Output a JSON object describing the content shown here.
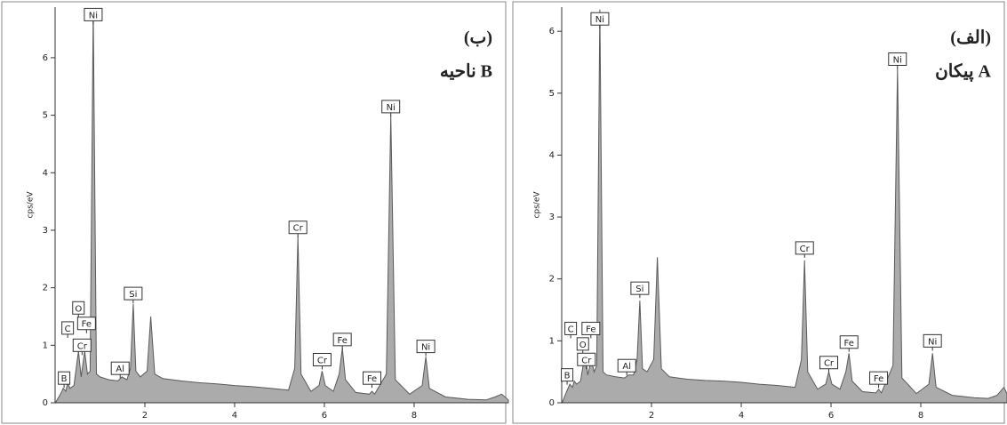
{
  "chart_data": [
    {
      "type": "area",
      "title": "(ب)",
      "subtitle": "ناحیه B",
      "y_label": "cps/eV",
      "color": "#ababab",
      "line_color": "#5a5a5a",
      "xlim": [
        0,
        10.1
      ],
      "ylim": [
        0,
        6.88
      ],
      "xticks": [
        2,
        4,
        6,
        8
      ],
      "yticks": [
        0,
        1,
        2,
        3,
        4,
        5,
        6
      ],
      "x": [
        0.02,
        0.12,
        0.18,
        0.24,
        0.28,
        0.33,
        0.42,
        0.52,
        0.58,
        0.66,
        0.72,
        0.78,
        0.85,
        0.92,
        1.0,
        1.2,
        1.4,
        1.49,
        1.6,
        1.68,
        1.74,
        1.8,
        1.9,
        2.05,
        2.13,
        2.22,
        2.4,
        2.8,
        3.2,
        3.6,
        4.0,
        4.4,
        4.8,
        5.2,
        5.34,
        5.41,
        5.48,
        5.7,
        5.88,
        5.95,
        6.02,
        6.2,
        6.33,
        6.4,
        6.47,
        6.7,
        7.0,
        7.06,
        7.12,
        7.38,
        7.48,
        7.58,
        7.9,
        8.18,
        8.26,
        8.34,
        8.7,
        9.2,
        9.6,
        9.8,
        9.95,
        10.1
      ],
      "values": [
        0.02,
        0.15,
        0.25,
        0.2,
        0.35,
        0.25,
        0.3,
        0.9,
        0.45,
        0.9,
        0.5,
        0.55,
        6.85,
        0.5,
        0.45,
        0.4,
        0.38,
        0.45,
        0.4,
        0.6,
        1.72,
        0.55,
        0.45,
        0.55,
        1.5,
        0.5,
        0.42,
        0.38,
        0.35,
        0.33,
        0.3,
        0.28,
        0.25,
        0.22,
        0.6,
        2.9,
        0.5,
        0.2,
        0.3,
        0.55,
        0.3,
        0.2,
        0.5,
        0.95,
        0.4,
        0.18,
        0.15,
        0.2,
        0.15,
        0.5,
        5.0,
        0.4,
        0.15,
        0.3,
        0.8,
        0.25,
        0.1,
        0.06,
        0.05,
        0.1,
        0.15,
        0.05
      ],
      "annotations": [
        {
          "text": "Ni",
          "x": 0.85,
          "y": 6.75
        },
        {
          "text": "Ni",
          "x": 7.48,
          "y": 5.15
        },
        {
          "text": "Cr",
          "x": 5.41,
          "y": 3.05
        },
        {
          "text": "Si",
          "x": 1.74,
          "y": 1.9
        },
        {
          "text": "O",
          "x": 0.52,
          "y": 1.65
        },
        {
          "text": "Fe",
          "x": 0.7,
          "y": 1.38
        },
        {
          "text": "C",
          "x": 0.28,
          "y": 1.3
        },
        {
          "text": "Cr",
          "x": 0.6,
          "y": 1.0
        },
        {
          "text": "Al",
          "x": 1.45,
          "y": 0.6
        },
        {
          "text": "Cr",
          "x": 5.95,
          "y": 0.75
        },
        {
          "text": "Fe",
          "x": 6.4,
          "y": 1.1
        },
        {
          "text": "Fe",
          "x": 7.06,
          "y": 0.43
        },
        {
          "text": "Ni",
          "x": 8.26,
          "y": 0.98
        },
        {
          "text": "B",
          "x": 0.2,
          "y": 0.43
        }
      ]
    },
    {
      "type": "area",
      "title": "(الف)",
      "subtitle": "پیکان A",
      "y_label": "cps/eV",
      "color": "#ababab",
      "line_color": "#5a5a5a",
      "xlim": [
        0,
        9.92
      ],
      "ylim": [
        0,
        6.39
      ],
      "xticks": [
        2,
        4,
        6,
        8
      ],
      "yticks": [
        0,
        1,
        2,
        3,
        4,
        5,
        6
      ],
      "x": [
        0.02,
        0.12,
        0.18,
        0.24,
        0.28,
        0.33,
        0.42,
        0.52,
        0.58,
        0.66,
        0.72,
        0.78,
        0.85,
        0.92,
        1.0,
        1.2,
        1.4,
        1.49,
        1.6,
        1.68,
        1.74,
        1.8,
        1.9,
        2.05,
        2.13,
        2.22,
        2.4,
        2.8,
        3.2,
        3.6,
        4.0,
        4.4,
        4.8,
        5.2,
        5.34,
        5.41,
        5.48,
        5.7,
        5.88,
        5.95,
        6.02,
        6.2,
        6.33,
        6.4,
        6.47,
        6.7,
        7.0,
        7.06,
        7.12,
        7.38,
        7.48,
        7.58,
        7.9,
        8.18,
        8.26,
        8.34,
        8.7,
        9.2,
        9.5,
        9.7,
        9.85,
        9.92
      ],
      "values": [
        0.02,
        0.2,
        0.3,
        0.25,
        0.35,
        0.3,
        0.35,
        0.8,
        0.45,
        0.7,
        0.5,
        0.6,
        6.35,
        0.5,
        0.45,
        0.42,
        0.4,
        0.45,
        0.45,
        0.7,
        1.65,
        0.55,
        0.5,
        0.7,
        2.35,
        0.55,
        0.42,
        0.38,
        0.36,
        0.35,
        0.33,
        0.3,
        0.28,
        0.25,
        0.7,
        2.3,
        0.5,
        0.22,
        0.3,
        0.5,
        0.3,
        0.22,
        0.5,
        0.8,
        0.35,
        0.18,
        0.16,
        0.22,
        0.16,
        0.6,
        5.4,
        0.4,
        0.15,
        0.3,
        0.8,
        0.25,
        0.12,
        0.08,
        0.07,
        0.12,
        0.25,
        0.15
      ],
      "annotations": [
        {
          "text": "Ni",
          "x": 0.85,
          "y": 6.2
        },
        {
          "text": "Ni",
          "x": 7.48,
          "y": 5.55
        },
        {
          "text": "Cr",
          "x": 5.41,
          "y": 2.5
        },
        {
          "text": "Si",
          "x": 1.74,
          "y": 1.85
        },
        {
          "text": "C",
          "x": 0.2,
          "y": 1.2
        },
        {
          "text": "O",
          "x": 0.47,
          "y": 0.95
        },
        {
          "text": "Fe",
          "x": 0.65,
          "y": 1.2
        },
        {
          "text": "Cr",
          "x": 0.55,
          "y": 0.7
        },
        {
          "text": "Al",
          "x": 1.45,
          "y": 0.6
        },
        {
          "text": "Cr",
          "x": 5.95,
          "y": 0.65
        },
        {
          "text": "Fe",
          "x": 6.4,
          "y": 0.98
        },
        {
          "text": "Fe",
          "x": 7.06,
          "y": 0.4
        },
        {
          "text": "Ni",
          "x": 8.26,
          "y": 1.0
        },
        {
          "text": "B",
          "x": 0.12,
          "y": 0.45
        }
      ]
    }
  ]
}
